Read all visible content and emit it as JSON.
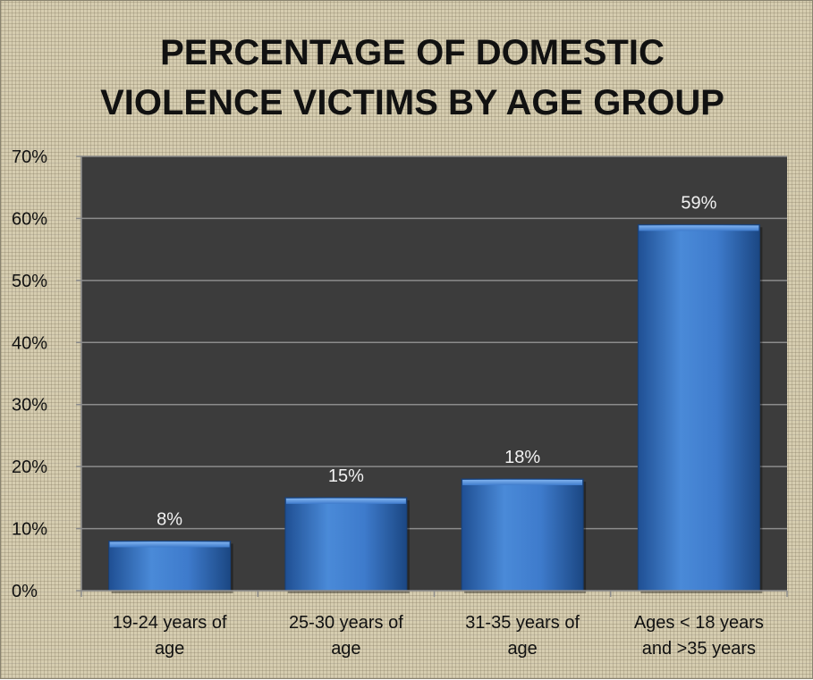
{
  "chart_data": {
    "type": "bar",
    "title": "PERCENTAGE OF DOMESTIC\nVIOLENCE VICTIMS BY AGE GROUP",
    "categories": [
      [
        "19-24 years of",
        "age"
      ],
      [
        "25-30 years of",
        "age"
      ],
      [
        "31-35 years of",
        "age"
      ],
      [
        "Ages < 18 years",
        "and >35 years"
      ]
    ],
    "values": [
      8,
      15,
      18,
      59
    ],
    "data_labels": [
      "8%",
      "15%",
      "18%",
      "59%"
    ],
    "yticks": [
      0,
      10,
      20,
      30,
      40,
      50,
      60,
      70
    ],
    "ytick_labels": [
      "0%",
      "10%",
      "20%",
      "30%",
      "40%",
      "50%",
      "60%",
      "70%"
    ],
    "ylim": [
      0,
      70
    ],
    "xlabel": "",
    "ylabel": "",
    "grid": true,
    "legend": "none",
    "colors": {
      "bar": "#3d78c9",
      "plot_background": "#3c3c3c",
      "gridline": "#8c8c8c",
      "data_label": "#f2f2f2"
    }
  }
}
